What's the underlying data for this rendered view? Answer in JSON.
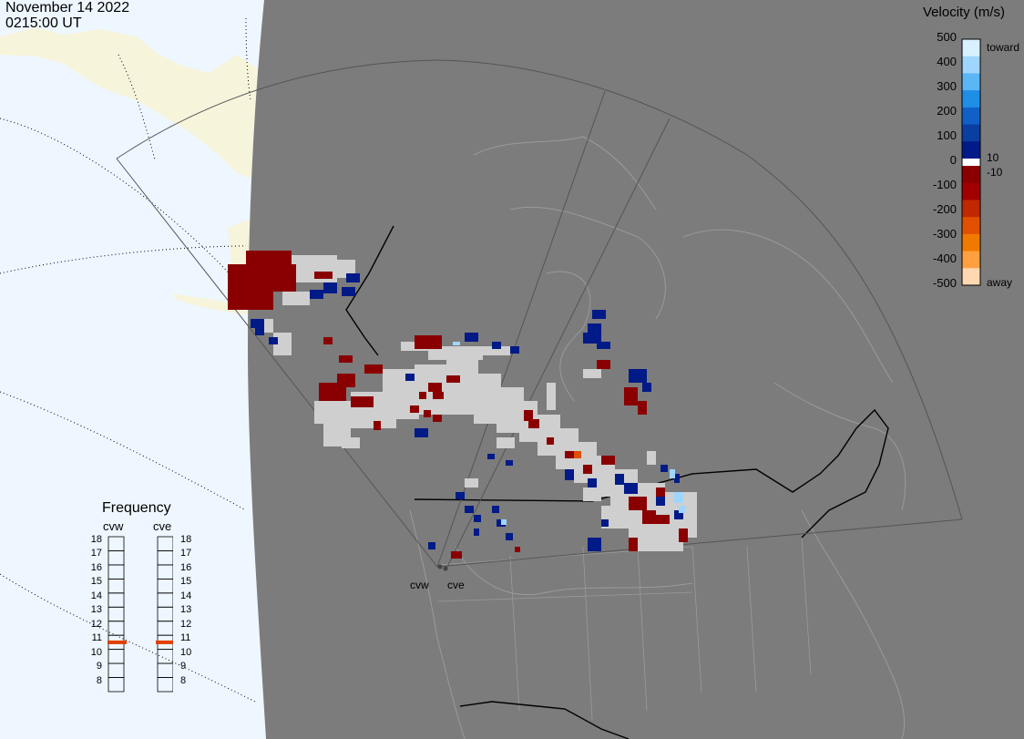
{
  "title": {
    "date": "November 14 2022",
    "time": "0215:00 UT"
  },
  "colorbar": {
    "title": "Velocity (m/s)",
    "ticks": [
      "500",
      "400",
      "300",
      "200",
      "100",
      "0",
      "-100",
      "-200",
      "-300",
      "-400",
      "-500"
    ],
    "side_labels": {
      "toward": "toward",
      "ten": "10",
      "minus_ten": "-10",
      "away": "away"
    },
    "colors_toward": [
      "#d8f0ff",
      "#9fd6ff",
      "#5ab6f5",
      "#1f8fe6",
      "#1060c8",
      "#0a3ea0",
      "#001a88"
    ],
    "colors_away": [
      "#8a0000",
      "#a00000",
      "#c02800",
      "#e05000",
      "#f07a00",
      "#ffa040",
      "#ffd8b0"
    ]
  },
  "map": {
    "land_color": "#f7f4dc",
    "ocean_color": "#eef7ff",
    "night_color": "#7c7c7c",
    "ground_scatter_color": "#cfcfcf"
  },
  "frequency": {
    "title": "Frequency",
    "radars": [
      "cvw",
      "cve"
    ],
    "scale": [
      "18",
      "17",
      "16",
      "15",
      "14",
      "13",
      "12",
      "11",
      "10",
      "9",
      "8"
    ],
    "cvw_mhz": 11,
    "cve_mhz": 11,
    "indicator_color": "#e04000"
  },
  "radar_sites": [
    "cvw",
    "cve"
  ]
}
